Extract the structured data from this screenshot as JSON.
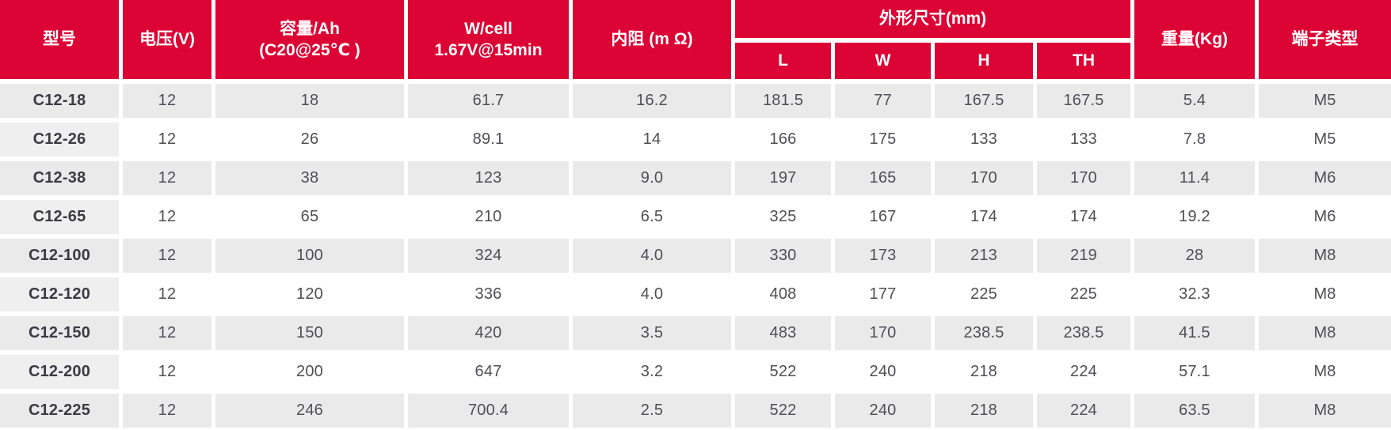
{
  "colors": {
    "header_red": "#dc0434",
    "row_shaded": "#eaeaea",
    "model_cell_shade": "#efefef",
    "body_text": "#4f4f55",
    "model_text": "#3b3b42",
    "header_text": "#ffffff",
    "page_background": "#ffffff"
  },
  "table": {
    "header": {
      "model": "型号",
      "voltage": "电压(V)",
      "capacity": "容量/Ah\n(C20@25℃ )",
      "w_per_cell": "W/cell\n1.67V@15min",
      "internal_resistance": "内阻 (m Ω)",
      "dimensions_group": "外形尺寸(mm)",
      "dim_l": "L",
      "dim_w": "W",
      "dim_h": "H",
      "dim_th": "TH",
      "weight": "重量(Kg)",
      "terminal_type": "端子类型"
    },
    "rows": [
      {
        "model": "C12-18",
        "voltage": "12",
        "capacity": "18",
        "w_per_cell": "61.7",
        "internal_resistance": "16.2",
        "dim_l": "181.5",
        "dim_w": "77",
        "dim_h": "167.5",
        "dim_th": "167.5",
        "weight": "5.4",
        "terminal_type": "M5"
      },
      {
        "model": "C12-26",
        "voltage": "12",
        "capacity": "26",
        "w_per_cell": "89.1",
        "internal_resistance": "14",
        "dim_l": "166",
        "dim_w": "175",
        "dim_h": "133",
        "dim_th": "133",
        "weight": "7.8",
        "terminal_type": "M5"
      },
      {
        "model": "C12-38",
        "voltage": "12",
        "capacity": "38",
        "w_per_cell": "123",
        "internal_resistance": "9.0",
        "dim_l": "197",
        "dim_w": "165",
        "dim_h": "170",
        "dim_th": "170",
        "weight": "11.4",
        "terminal_type": "M6"
      },
      {
        "model": "C12-65",
        "voltage": "12",
        "capacity": "65",
        "w_per_cell": "210",
        "internal_resistance": "6.5",
        "dim_l": "325",
        "dim_w": "167",
        "dim_h": "174",
        "dim_th": "174",
        "weight": "19.2",
        "terminal_type": "M6"
      },
      {
        "model": "C12-100",
        "voltage": "12",
        "capacity": "100",
        "w_per_cell": "324",
        "internal_resistance": "4.0",
        "dim_l": "330",
        "dim_w": "173",
        "dim_h": "213",
        "dim_th": "219",
        "weight": "28",
        "terminal_type": "M8"
      },
      {
        "model": "C12-120",
        "voltage": "12",
        "capacity": "120",
        "w_per_cell": "336",
        "internal_resistance": "4.0",
        "dim_l": "408",
        "dim_w": "177",
        "dim_h": "225",
        "dim_th": "225",
        "weight": "32.3",
        "terminal_type": "M8"
      },
      {
        "model": "C12-150",
        "voltage": "12",
        "capacity": "150",
        "w_per_cell": "420",
        "internal_resistance": "3.5",
        "dim_l": "483",
        "dim_w": "170",
        "dim_h": "238.5",
        "dim_th": "238.5",
        "weight": "41.5",
        "terminal_type": "M8"
      },
      {
        "model": "C12-200",
        "voltage": "12",
        "capacity": "200",
        "w_per_cell": "647",
        "internal_resistance": "3.2",
        "dim_l": "522",
        "dim_w": "240",
        "dim_h": "218",
        "dim_th": "224",
        "weight": "57.1",
        "terminal_type": "M8"
      },
      {
        "model": "C12-225",
        "voltage": "12",
        "capacity": "246",
        "w_per_cell": "700.4",
        "internal_resistance": "2.5",
        "dim_l": "522",
        "dim_w": "240",
        "dim_h": "218",
        "dim_th": "224",
        "weight": "63.5",
        "terminal_type": "M8"
      }
    ]
  }
}
